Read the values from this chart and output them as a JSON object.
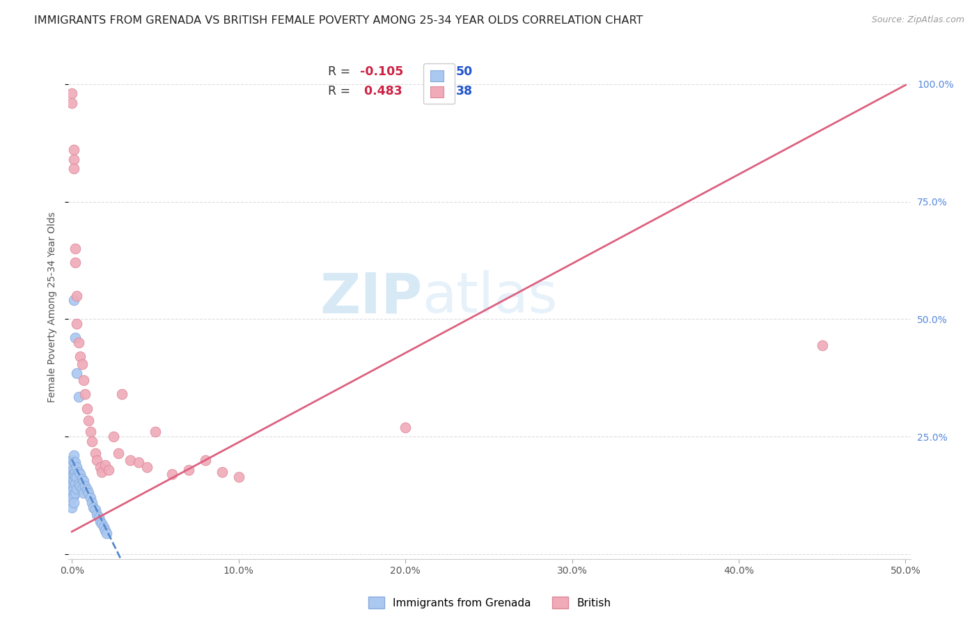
{
  "title": "IMMIGRANTS FROM GRENADA VS BRITISH FEMALE POVERTY AMONG 25-34 YEAR OLDS CORRELATION CHART",
  "source": "Source: ZipAtlas.com",
  "ylabel": "Female Poverty Among 25-34 Year Olds",
  "xlim": [
    -0.002,
    0.503
  ],
  "ylim": [
    -0.01,
    1.06
  ],
  "xticks": [
    0.0,
    0.1,
    0.2,
    0.3,
    0.4,
    0.5
  ],
  "xticklabels": [
    "0.0%",
    "10.0%",
    "20.0%",
    "30.0%",
    "40.0%",
    "50.0%"
  ],
  "yticks": [
    0.0,
    0.25,
    0.5,
    0.75,
    1.0
  ],
  "yticklabels_right": [
    "",
    "25.0%",
    "50.0%",
    "75.0%",
    "100.0%"
  ],
  "grenada_color": "#aac8f0",
  "british_color": "#f0aab8",
  "grenada_edge": "#88aadd",
  "british_edge": "#dd8899",
  "trend_grenada_color": "#5588cc",
  "trend_british_color": "#dd6080",
  "R_grenada": -0.105,
  "N_grenada": 50,
  "R_british": 0.483,
  "N_british": 38,
  "watermark_color": "#cce4f5",
  "background_color": "#ffffff",
  "grid_color": "#dddddd",
  "title_fontsize": 11.5,
  "axis_label_fontsize": 10,
  "tick_fontsize": 10,
  "grenada_x": [
    0.0,
    0.0,
    0.0,
    0.0,
    0.0,
    0.0,
    0.0,
    0.0,
    0.001,
    0.001,
    0.001,
    0.001,
    0.001,
    0.001,
    0.001,
    0.001,
    0.002,
    0.002,
    0.002,
    0.002,
    0.002,
    0.003,
    0.003,
    0.003,
    0.004,
    0.004,
    0.005,
    0.005,
    0.006,
    0.006,
    0.007,
    0.007,
    0.008,
    0.009,
    0.01,
    0.011,
    0.012,
    0.013,
    0.014,
    0.015,
    0.016,
    0.017,
    0.018,
    0.019,
    0.02,
    0.021,
    0.001,
    0.002,
    0.003,
    0.004
  ],
  "grenada_y": [
    0.2,
    0.18,
    0.165,
    0.155,
    0.145,
    0.135,
    0.12,
    0.1,
    0.21,
    0.195,
    0.18,
    0.17,
    0.155,
    0.14,
    0.125,
    0.11,
    0.195,
    0.175,
    0.165,
    0.15,
    0.13,
    0.185,
    0.165,
    0.14,
    0.175,
    0.15,
    0.17,
    0.145,
    0.16,
    0.14,
    0.155,
    0.13,
    0.145,
    0.138,
    0.13,
    0.12,
    0.11,
    0.1,
    0.095,
    0.085,
    0.078,
    0.07,
    0.065,
    0.058,
    0.05,
    0.045,
    0.54,
    0.46,
    0.385,
    0.335
  ],
  "british_x": [
    0.0,
    0.0,
    0.001,
    0.001,
    0.001,
    0.002,
    0.002,
    0.003,
    0.003,
    0.004,
    0.005,
    0.006,
    0.007,
    0.008,
    0.009,
    0.01,
    0.011,
    0.012,
    0.014,
    0.015,
    0.017,
    0.018,
    0.02,
    0.022,
    0.025,
    0.028,
    0.03,
    0.035,
    0.04,
    0.045,
    0.05,
    0.06,
    0.07,
    0.08,
    0.09,
    0.1,
    0.2,
    0.45
  ],
  "british_y": [
    0.98,
    0.96,
    0.86,
    0.84,
    0.82,
    0.65,
    0.62,
    0.55,
    0.49,
    0.45,
    0.42,
    0.405,
    0.37,
    0.34,
    0.31,
    0.285,
    0.26,
    0.24,
    0.215,
    0.2,
    0.185,
    0.175,
    0.19,
    0.18,
    0.25,
    0.215,
    0.34,
    0.2,
    0.195,
    0.185,
    0.26,
    0.17,
    0.18,
    0.2,
    0.175,
    0.165,
    0.27,
    0.445
  ],
  "british_trendline": [
    0.0,
    0.5,
    0.048,
    0.998
  ],
  "grenada_trendline_end_x": 0.38
}
